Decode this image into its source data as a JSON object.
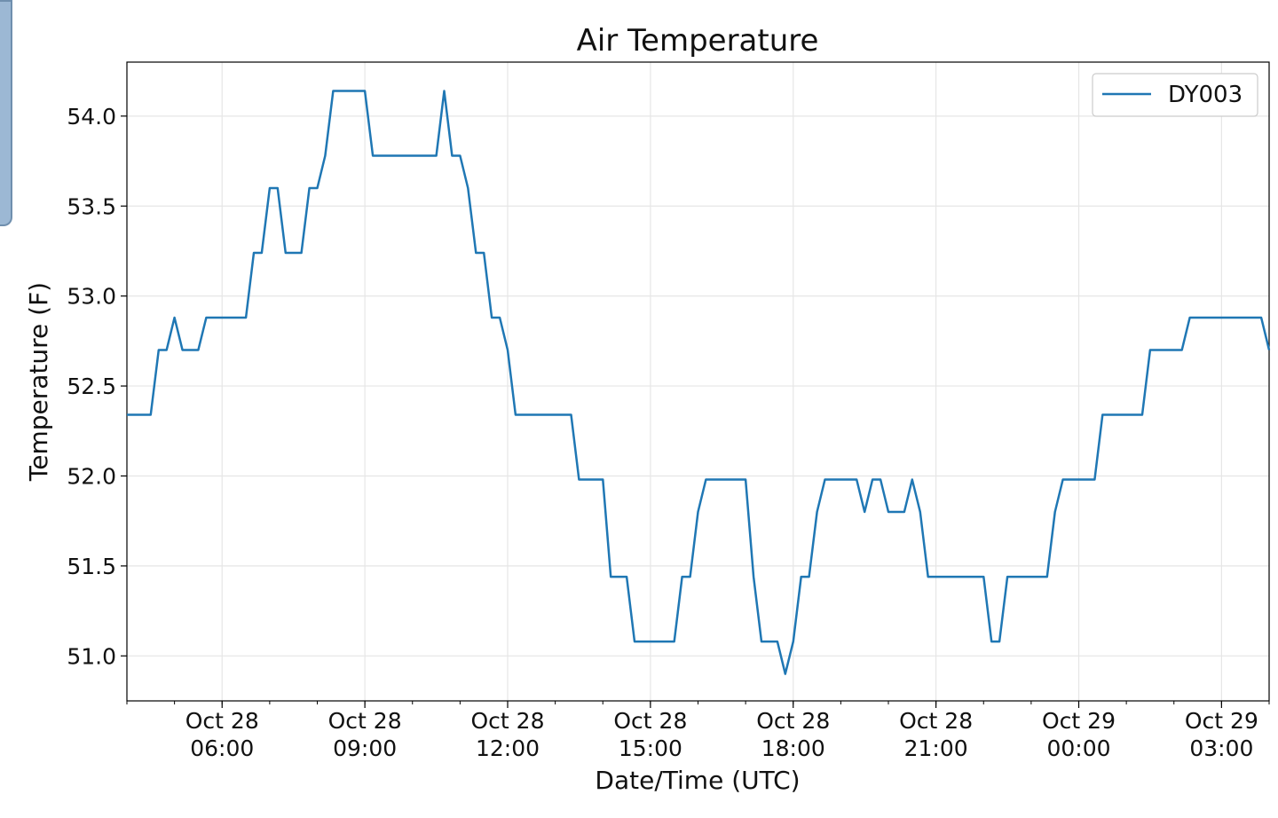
{
  "chart_data": {
    "type": "line",
    "title": "Air Temperature",
    "xlabel": "Date/Time (UTC)",
    "ylabel": "Temperature (F)",
    "grid": true,
    "legend_position": "top-right",
    "xlim": [
      "2023-10-28 04:00",
      "2023-10-29 04:00"
    ],
    "ylim": [
      50.75,
      54.3
    ],
    "x_ticks": [
      {
        "at": "2023-10-28 06:00",
        "line1": "Oct 28",
        "line2": "06:00"
      },
      {
        "at": "2023-10-28 09:00",
        "line1": "Oct 28",
        "line2": "09:00"
      },
      {
        "at": "2023-10-28 12:00",
        "line1": "Oct 28",
        "line2": "12:00"
      },
      {
        "at": "2023-10-28 15:00",
        "line1": "Oct 28",
        "line2": "15:00"
      },
      {
        "at": "2023-10-28 18:00",
        "line1": "Oct 28",
        "line2": "18:00"
      },
      {
        "at": "2023-10-28 21:00",
        "line1": "Oct 28",
        "line2": "21:00"
      },
      {
        "at": "2023-10-29 00:00",
        "line1": "Oct 29",
        "line2": "00:00"
      },
      {
        "at": "2023-10-29 03:00",
        "line1": "Oct 29",
        "line2": "03:00"
      }
    ],
    "y_ticks": [
      51.0,
      51.5,
      52.0,
      52.5,
      53.0,
      53.5,
      54.0
    ],
    "y_tick_labels": [
      "51.0",
      "51.5",
      "52.0",
      "52.5",
      "53.0",
      "53.5",
      "54.0"
    ],
    "series": [
      {
        "name": "DY003",
        "color": "#1f77b4",
        "points": [
          [
            "2023-10-28 04:00",
            52.34
          ],
          [
            "2023-10-28 04:30",
            52.34
          ],
          [
            "2023-10-28 04:40",
            52.7
          ],
          [
            "2023-10-28 04:50",
            52.7
          ],
          [
            "2023-10-28 05:00",
            52.88
          ],
          [
            "2023-10-28 05:10",
            52.7
          ],
          [
            "2023-10-28 05:30",
            52.7
          ],
          [
            "2023-10-28 05:40",
            52.88
          ],
          [
            "2023-10-28 06:30",
            52.88
          ],
          [
            "2023-10-28 06:40",
            53.24
          ],
          [
            "2023-10-28 06:50",
            53.24
          ],
          [
            "2023-10-28 07:00",
            53.6
          ],
          [
            "2023-10-28 07:10",
            53.6
          ],
          [
            "2023-10-28 07:20",
            53.24
          ],
          [
            "2023-10-28 07:40",
            53.24
          ],
          [
            "2023-10-28 07:50",
            53.6
          ],
          [
            "2023-10-28 08:00",
            53.6
          ],
          [
            "2023-10-28 08:10",
            53.78
          ],
          [
            "2023-10-28 08:20",
            54.14
          ],
          [
            "2023-10-28 09:00",
            54.14
          ],
          [
            "2023-10-28 09:10",
            53.78
          ],
          [
            "2023-10-28 10:30",
            53.78
          ],
          [
            "2023-10-28 10:40",
            54.14
          ],
          [
            "2023-10-28 10:50",
            53.78
          ],
          [
            "2023-10-28 11:00",
            53.78
          ],
          [
            "2023-10-28 11:10",
            53.6
          ],
          [
            "2023-10-28 11:20",
            53.24
          ],
          [
            "2023-10-28 11:30",
            53.24
          ],
          [
            "2023-10-28 11:40",
            52.88
          ],
          [
            "2023-10-28 11:50",
            52.88
          ],
          [
            "2023-10-28 12:00",
            52.7
          ],
          [
            "2023-10-28 12:10",
            52.34
          ],
          [
            "2023-10-28 13:20",
            52.34
          ],
          [
            "2023-10-28 13:30",
            51.98
          ],
          [
            "2023-10-28 14:00",
            51.98
          ],
          [
            "2023-10-28 14:10",
            51.44
          ],
          [
            "2023-10-28 14:30",
            51.44
          ],
          [
            "2023-10-28 14:40",
            51.08
          ],
          [
            "2023-10-28 15:30",
            51.08
          ],
          [
            "2023-10-28 15:40",
            51.44
          ],
          [
            "2023-10-28 15:50",
            51.44
          ],
          [
            "2023-10-28 16:00",
            51.8
          ],
          [
            "2023-10-28 16:10",
            51.98
          ],
          [
            "2023-10-28 17:00",
            51.98
          ],
          [
            "2023-10-28 17:10",
            51.44
          ],
          [
            "2023-10-28 17:20",
            51.08
          ],
          [
            "2023-10-28 17:40",
            51.08
          ],
          [
            "2023-10-28 17:50",
            50.9
          ],
          [
            "2023-10-28 18:00",
            51.08
          ],
          [
            "2023-10-28 18:10",
            51.44
          ],
          [
            "2023-10-28 18:20",
            51.44
          ],
          [
            "2023-10-28 18:30",
            51.8
          ],
          [
            "2023-10-28 18:40",
            51.98
          ],
          [
            "2023-10-28 19:20",
            51.98
          ],
          [
            "2023-10-28 19:30",
            51.8
          ],
          [
            "2023-10-28 19:40",
            51.98
          ],
          [
            "2023-10-28 19:50",
            51.98
          ],
          [
            "2023-10-28 20:00",
            51.8
          ],
          [
            "2023-10-28 20:20",
            51.8
          ],
          [
            "2023-10-28 20:30",
            51.98
          ],
          [
            "2023-10-28 20:40",
            51.8
          ],
          [
            "2023-10-28 20:50",
            51.44
          ],
          [
            "2023-10-28 22:00",
            51.44
          ],
          [
            "2023-10-28 22:10",
            51.08
          ],
          [
            "2023-10-28 22:20",
            51.08
          ],
          [
            "2023-10-28 22:30",
            51.44
          ],
          [
            "2023-10-28 23:20",
            51.44
          ],
          [
            "2023-10-28 23:30",
            51.8
          ],
          [
            "2023-10-28 23:40",
            51.98
          ],
          [
            "2023-10-29 00:20",
            51.98
          ],
          [
            "2023-10-29 00:30",
            52.34
          ],
          [
            "2023-10-29 01:20",
            52.34
          ],
          [
            "2023-10-29 01:30",
            52.7
          ],
          [
            "2023-10-29 02:10",
            52.7
          ],
          [
            "2023-10-29 02:20",
            52.88
          ],
          [
            "2023-10-29 03:50",
            52.88
          ],
          [
            "2023-10-29 04:00",
            52.7
          ]
        ]
      }
    ]
  }
}
